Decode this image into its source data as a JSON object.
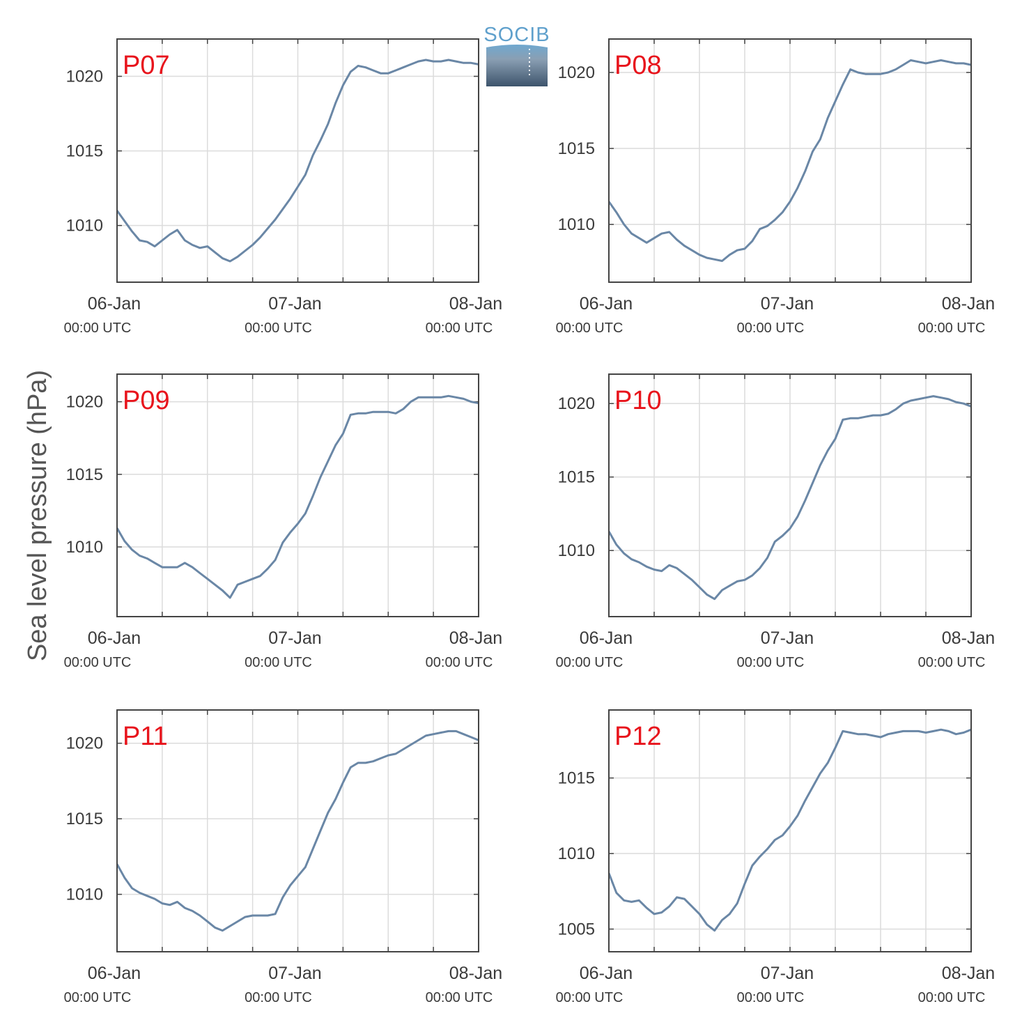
{
  "figure": {
    "ylabel": "Sea level pressure (hPa)",
    "logo_text": "SOCIB",
    "colors": {
      "line": "#6a87a6",
      "panel_label": "#e8141c",
      "grid": "#dcdcdc",
      "axis": "#444444"
    }
  },
  "chart_data": [
    {
      "type": "line",
      "panel_label": "P07",
      "x_ticks": [
        {
          "date": "06-Jan",
          "time": "00:00 UTC"
        },
        {
          "date": "07-Jan",
          "time": "00:00 UTC"
        },
        {
          "date": "08-Jan",
          "time": "00:00 UTC"
        }
      ],
      "xlim": [
        0,
        48
      ],
      "ylim": [
        1006.2,
        1022.5
      ],
      "yticks": [
        1010,
        1015,
        1020
      ],
      "grid": true,
      "x": [
        0,
        1,
        2,
        3,
        4,
        5,
        6,
        7,
        8,
        9,
        10,
        11,
        12,
        13,
        14,
        15,
        16,
        17,
        18,
        19,
        20,
        21,
        22,
        23,
        24,
        25,
        26,
        27,
        28,
        29,
        30,
        31,
        32,
        33,
        34,
        35,
        36,
        37,
        38,
        39,
        40,
        41,
        42,
        43,
        44,
        45,
        46,
        47,
        48
      ],
      "y": [
        1011.0,
        1010.3,
        1009.6,
        1009.0,
        1008.9,
        1008.6,
        1009.0,
        1009.4,
        1009.7,
        1009.0,
        1008.7,
        1008.5,
        1008.6,
        1008.2,
        1007.8,
        1007.6,
        1007.9,
        1008.3,
        1008.7,
        1009.2,
        1009.8,
        1010.4,
        1011.1,
        1011.8,
        1012.6,
        1013.4,
        1014.7,
        1015.7,
        1016.8,
        1018.2,
        1019.4,
        1020.3,
        1020.7,
        1020.6,
        1020.4,
        1020.2,
        1020.2,
        1020.4,
        1020.6,
        1020.8,
        1021.0,
        1021.1,
        1021.0,
        1021.0,
        1021.1,
        1021.0,
        1020.9,
        1020.9,
        1020.8
      ]
    },
    {
      "type": "line",
      "panel_label": "P08",
      "x_ticks": [
        {
          "date": "06-Jan",
          "time": "00:00 UTC"
        },
        {
          "date": "07-Jan",
          "time": "00:00 UTC"
        },
        {
          "date": "08-Jan",
          "time": "00:00 UTC"
        }
      ],
      "xlim": [
        0,
        48
      ],
      "ylim": [
        1006.2,
        1022.2
      ],
      "yticks": [
        1010,
        1015,
        1020
      ],
      "grid": true,
      "x": [
        0,
        1,
        2,
        3,
        4,
        5,
        6,
        7,
        8,
        9,
        10,
        11,
        12,
        13,
        14,
        15,
        16,
        17,
        18,
        19,
        20,
        21,
        22,
        23,
        24,
        25,
        26,
        27,
        28,
        29,
        30,
        31,
        32,
        33,
        34,
        35,
        36,
        37,
        38,
        39,
        40,
        41,
        42,
        43,
        44,
        45,
        46,
        47,
        48
      ],
      "y": [
        1011.5,
        1010.8,
        1010.0,
        1009.4,
        1009.1,
        1008.8,
        1009.1,
        1009.4,
        1009.5,
        1009.0,
        1008.6,
        1008.3,
        1008.0,
        1007.8,
        1007.7,
        1007.6,
        1008.0,
        1008.3,
        1008.4,
        1008.9,
        1009.7,
        1009.9,
        1010.3,
        1010.8,
        1011.5,
        1012.4,
        1013.5,
        1014.8,
        1015.6,
        1017.0,
        1018.1,
        1019.2,
        1020.2,
        1020.0,
        1019.9,
        1019.9,
        1019.9,
        1020.0,
        1020.2,
        1020.5,
        1020.8,
        1020.7,
        1020.6,
        1020.7,
        1020.8,
        1020.7,
        1020.6,
        1020.6,
        1020.5
      ]
    },
    {
      "type": "line",
      "panel_label": "P09",
      "x_ticks": [
        {
          "date": "06-Jan",
          "time": "00:00 UTC"
        },
        {
          "date": "07-Jan",
          "time": "00:00 UTC"
        },
        {
          "date": "08-Jan",
          "time": "00:00 UTC"
        }
      ],
      "xlim": [
        0,
        48
      ],
      "ylim": [
        1005.2,
        1021.9
      ],
      "yticks": [
        1010,
        1015,
        1020
      ],
      "grid": true,
      "x": [
        0,
        1,
        2,
        3,
        4,
        5,
        6,
        7,
        8,
        9,
        10,
        11,
        12,
        13,
        14,
        15,
        16,
        17,
        18,
        19,
        20,
        21,
        22,
        23,
        24,
        25,
        26,
        27,
        28,
        29,
        30,
        31,
        32,
        33,
        34,
        35,
        36,
        37,
        38,
        39,
        40,
        41,
        42,
        43,
        44,
        45,
        46,
        47,
        48
      ],
      "y": [
        1011.3,
        1010.4,
        1009.8,
        1009.4,
        1009.2,
        1008.9,
        1008.6,
        1008.6,
        1008.6,
        1008.9,
        1008.6,
        1008.2,
        1007.8,
        1007.4,
        1007.0,
        1006.5,
        1007.4,
        1007.6,
        1007.8,
        1008.0,
        1008.5,
        1009.1,
        1010.3,
        1011.0,
        1011.6,
        1012.3,
        1013.5,
        1014.8,
        1015.9,
        1017.0,
        1017.8,
        1019.1,
        1019.2,
        1019.2,
        1019.3,
        1019.3,
        1019.3,
        1019.2,
        1019.5,
        1020.0,
        1020.3,
        1020.3,
        1020.3,
        1020.3,
        1020.4,
        1020.3,
        1020.2,
        1020.0,
        1019.9
      ]
    },
    {
      "type": "line",
      "panel_label": "P10",
      "x_ticks": [
        {
          "date": "06-Jan",
          "time": "00:00 UTC"
        },
        {
          "date": "07-Jan",
          "time": "00:00 UTC"
        },
        {
          "date": "08-Jan",
          "time": "00:00 UTC"
        }
      ],
      "xlim": [
        0,
        48
      ],
      "ylim": [
        1005.5,
        1022.0
      ],
      "yticks": [
        1010,
        1015,
        1020
      ],
      "grid": true,
      "x": [
        0,
        1,
        2,
        3,
        4,
        5,
        6,
        7,
        8,
        9,
        10,
        11,
        12,
        13,
        14,
        15,
        16,
        17,
        18,
        19,
        20,
        21,
        22,
        23,
        24,
        25,
        26,
        27,
        28,
        29,
        30,
        31,
        32,
        33,
        34,
        35,
        36,
        37,
        38,
        39,
        40,
        41,
        42,
        43,
        44,
        45,
        46,
        47,
        48
      ],
      "y": [
        1011.3,
        1010.4,
        1009.8,
        1009.4,
        1009.2,
        1008.9,
        1008.7,
        1008.6,
        1009.0,
        1008.8,
        1008.4,
        1008.0,
        1007.5,
        1007.0,
        1006.7,
        1007.3,
        1007.6,
        1007.9,
        1008.0,
        1008.3,
        1008.8,
        1009.5,
        1010.6,
        1011.0,
        1011.5,
        1012.3,
        1013.4,
        1014.6,
        1015.8,
        1016.8,
        1017.6,
        1018.9,
        1019.0,
        1019.0,
        1019.1,
        1019.2,
        1019.2,
        1019.3,
        1019.6,
        1020.0,
        1020.2,
        1020.3,
        1020.4,
        1020.5,
        1020.4,
        1020.3,
        1020.1,
        1020.0,
        1019.8
      ]
    },
    {
      "type": "line",
      "panel_label": "P11",
      "x_ticks": [
        {
          "date": "06-Jan",
          "time": "00:00 UTC"
        },
        {
          "date": "07-Jan",
          "time": "00:00 UTC"
        },
        {
          "date": "08-Jan",
          "time": "00:00 UTC"
        }
      ],
      "xlim": [
        0,
        48
      ],
      "ylim": [
        1006.2,
        1022.2
      ],
      "yticks": [
        1010,
        1015,
        1020
      ],
      "grid": true,
      "x": [
        0,
        1,
        2,
        3,
        4,
        5,
        6,
        7,
        8,
        9,
        10,
        11,
        12,
        13,
        14,
        15,
        16,
        17,
        18,
        19,
        20,
        21,
        22,
        23,
        24,
        25,
        26,
        27,
        28,
        29,
        30,
        31,
        32,
        33,
        34,
        35,
        36,
        37,
        38,
        39,
        40,
        41,
        42,
        43,
        44,
        45,
        46,
        47,
        48
      ],
      "y": [
        1012.0,
        1011.1,
        1010.4,
        1010.1,
        1009.9,
        1009.7,
        1009.4,
        1009.3,
        1009.5,
        1009.1,
        1008.9,
        1008.6,
        1008.2,
        1007.8,
        1007.6,
        1007.9,
        1008.2,
        1008.5,
        1008.6,
        1008.6,
        1008.6,
        1008.7,
        1009.8,
        1010.6,
        1011.2,
        1011.8,
        1013.0,
        1014.2,
        1015.4,
        1016.3,
        1017.4,
        1018.4,
        1018.7,
        1018.7,
        1018.8,
        1019.0,
        1019.2,
        1019.3,
        1019.6,
        1019.9,
        1020.2,
        1020.5,
        1020.6,
        1020.7,
        1020.8,
        1020.8,
        1020.6,
        1020.4,
        1020.2
      ]
    },
    {
      "type": "line",
      "panel_label": "P12",
      "x_ticks": [
        {
          "date": "06-Jan",
          "time": "00:00 UTC"
        },
        {
          "date": "07-Jan",
          "time": "00:00 UTC"
        },
        {
          "date": "08-Jan",
          "time": "00:00 UTC"
        }
      ],
      "xlim": [
        0,
        48
      ],
      "ylim": [
        1003.5,
        1019.5
      ],
      "yticks": [
        1005,
        1010,
        1015
      ],
      "grid": true,
      "x": [
        0,
        1,
        2,
        3,
        4,
        5,
        6,
        7,
        8,
        9,
        10,
        11,
        12,
        13,
        14,
        15,
        16,
        17,
        18,
        19,
        20,
        21,
        22,
        23,
        24,
        25,
        26,
        27,
        28,
        29,
        30,
        31,
        32,
        33,
        34,
        35,
        36,
        37,
        38,
        39,
        40,
        41,
        42,
        43,
        44,
        45,
        46,
        47,
        48
      ],
      "y": [
        1008.7,
        1007.4,
        1006.9,
        1006.8,
        1006.9,
        1006.4,
        1006.0,
        1006.1,
        1006.5,
        1007.1,
        1007.0,
        1006.5,
        1006.0,
        1005.3,
        1004.9,
        1005.6,
        1006.0,
        1006.7,
        1008.0,
        1009.2,
        1009.8,
        1010.3,
        1010.9,
        1011.2,
        1011.8,
        1012.5,
        1013.5,
        1014.4,
        1015.3,
        1016.0,
        1017.0,
        1018.1,
        1018.0,
        1017.9,
        1017.9,
        1017.8,
        1017.7,
        1017.9,
        1018.0,
        1018.1,
        1018.1,
        1018.1,
        1018.0,
        1018.1,
        1018.2,
        1018.1,
        1017.9,
        1018.0,
        1018.2
      ]
    }
  ]
}
